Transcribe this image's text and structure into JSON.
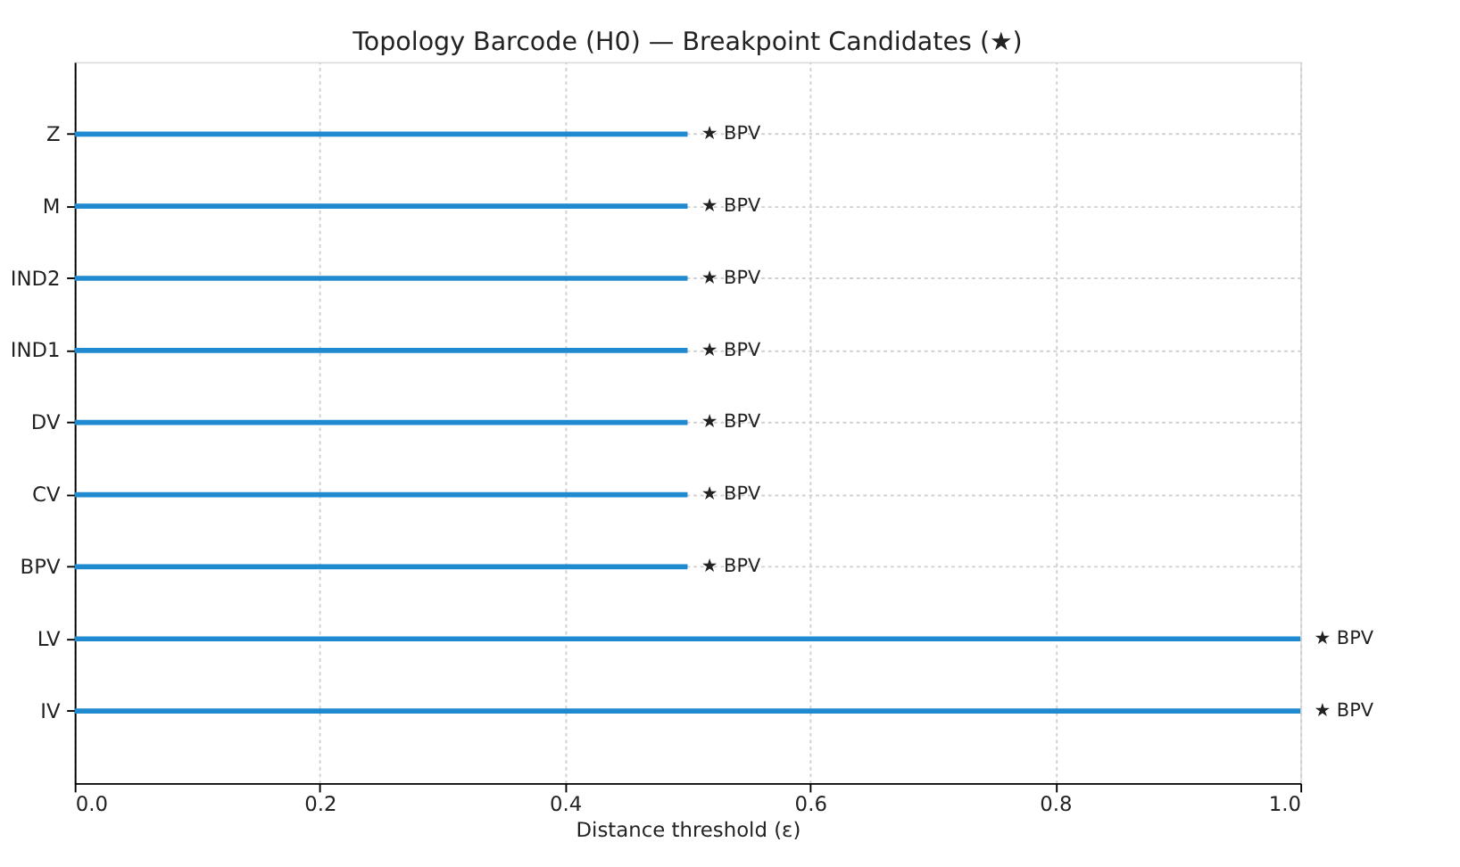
{
  "chart_data": {
    "type": "bar",
    "orientation": "horizontal",
    "title": "Topology Barcode (H0) — Breakpoint Candidates (★)",
    "xlabel": "Distance threshold (ε)",
    "categories": [
      "Z",
      "M",
      "IND2",
      "IND1",
      "DV",
      "CV",
      "BPV",
      "LV",
      "IV"
    ],
    "values": [
      0.5,
      0.5,
      0.5,
      0.5,
      0.5,
      0.5,
      0.5,
      1.0,
      1.0
    ],
    "color": "#1f8ad0",
    "xlim": [
      0,
      1
    ],
    "xticks": [
      {
        "value": 0,
        "label": "0.0"
      },
      0.2,
      0.4,
      0.6,
      0.8,
      {
        "value": 1,
        "label": "1.0"
      }
    ],
    "grid": true,
    "value_labels": [
      "★ BPV",
      "★ BPV",
      "★ BPV",
      "★ BPV",
      "★ BPV",
      "★ BPV",
      "★ BPV",
      "★ BPV",
      "★ BPV"
    ]
  }
}
